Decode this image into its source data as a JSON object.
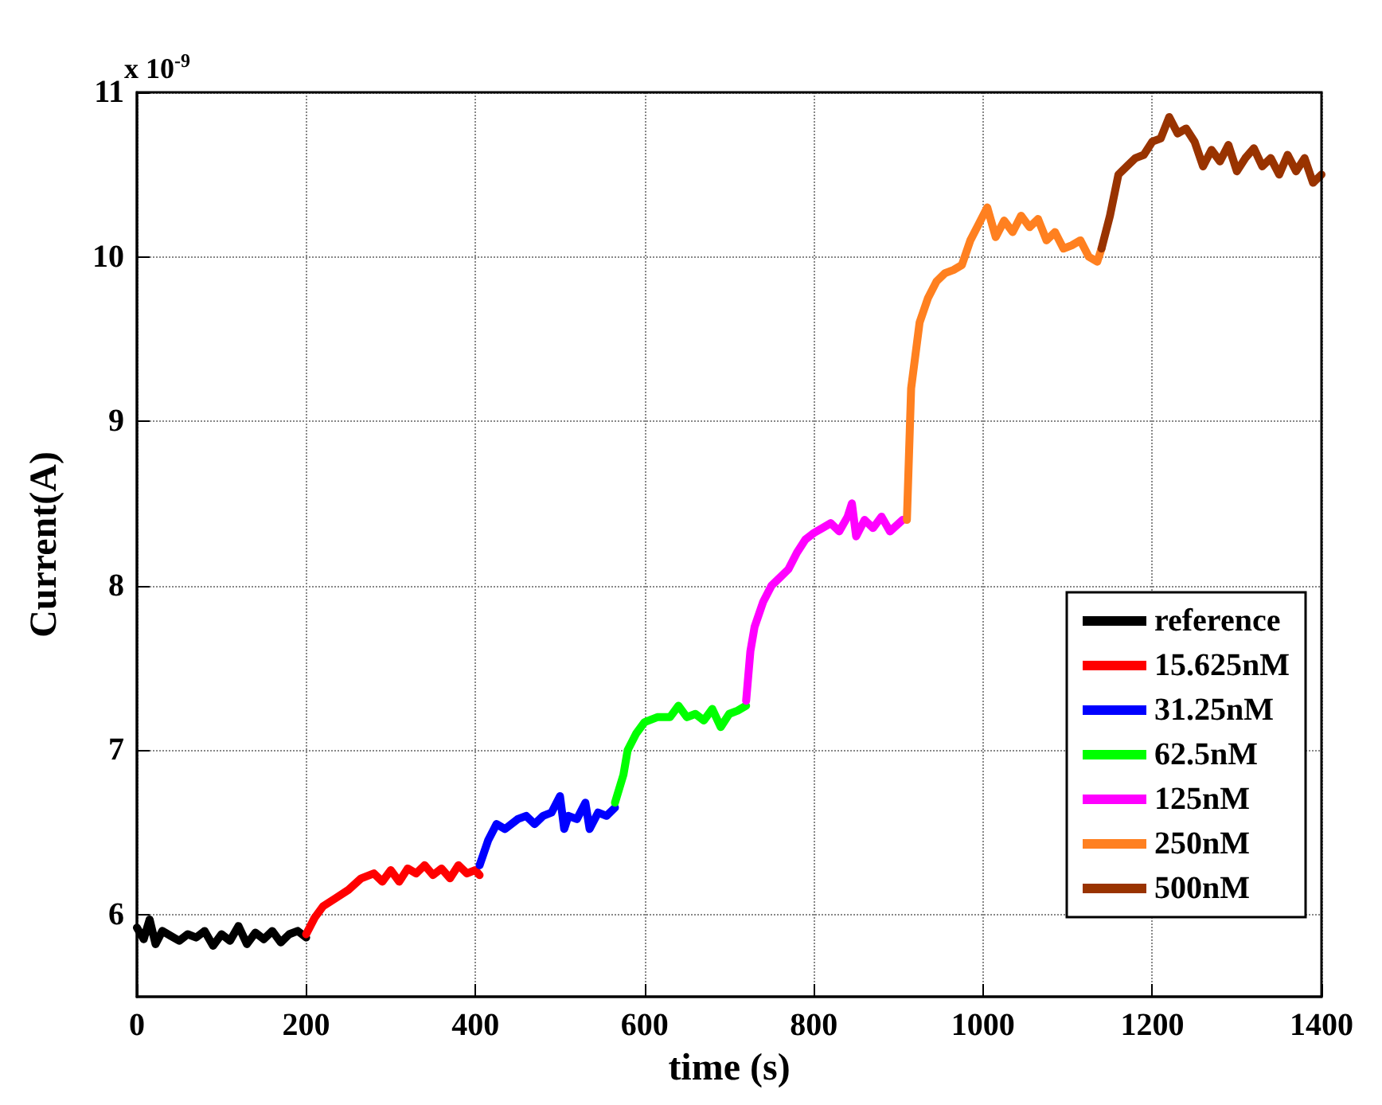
{
  "chart_data": {
    "type": "line",
    "xlabel": "time (s)",
    "ylabel": "Current(A)",
    "annotations": [
      "x 10$^{-9}$"
    ],
    "xlim": [
      0,
      1400
    ],
    "ylim": [
      5.5,
      11
    ],
    "xticks": [
      0,
      200,
      400,
      600,
      800,
      1000,
      1200,
      1400
    ],
    "yticks": [
      6,
      7,
      8,
      9,
      10,
      11
    ],
    "grid": true,
    "legend": "bottom right",
    "marker": "none",
    "line_style": "solid",
    "series": [
      {
        "name": "reference",
        "color": "#000000",
        "x": [
          0,
          8,
          15,
          22,
          30,
          40,
          50,
          60,
          70,
          80,
          90,
          100,
          110,
          120,
          130,
          140,
          150,
          160,
          170,
          180,
          190,
          200
        ],
        "values": [
          5.92,
          5.85,
          5.97,
          5.82,
          5.9,
          5.87,
          5.84,
          5.88,
          5.86,
          5.9,
          5.81,
          5.88,
          5.84,
          5.93,
          5.82,
          5.89,
          5.85,
          5.9,
          5.83,
          5.88,
          5.9,
          5.86
        ]
      },
      {
        "name": "15.625nM",
        "color": "#ff0000",
        "x": [
          200,
          210,
          220,
          235,
          250,
          265,
          280,
          290,
          300,
          310,
          320,
          330,
          340,
          350,
          360,
          370,
          380,
          390,
          400,
          405
        ],
        "values": [
          5.88,
          5.98,
          6.05,
          6.1,
          6.15,
          6.22,
          6.25,
          6.2,
          6.27,
          6.2,
          6.28,
          6.25,
          6.3,
          6.24,
          6.28,
          6.22,
          6.3,
          6.25,
          6.27,
          6.24
        ]
      },
      {
        "name": "31.25nM",
        "color": "#0000ff",
        "x": [
          405,
          415,
          425,
          435,
          450,
          460,
          470,
          480,
          490,
          500,
          505,
          510,
          520,
          530,
          535,
          545,
          555,
          565
        ],
        "values": [
          6.3,
          6.45,
          6.55,
          6.52,
          6.58,
          6.6,
          6.55,
          6.6,
          6.62,
          6.72,
          6.52,
          6.6,
          6.58,
          6.68,
          6.52,
          6.62,
          6.6,
          6.65
        ]
      },
      {
        "name": "62.5nM",
        "color": "#00ff00",
        "x": [
          565,
          575,
          580,
          590,
          600,
          615,
          630,
          640,
          650,
          660,
          670,
          680,
          690,
          700,
          710,
          720
        ],
        "values": [
          6.68,
          6.85,
          7.0,
          7.1,
          7.17,
          7.2,
          7.2,
          7.27,
          7.2,
          7.22,
          7.18,
          7.25,
          7.14,
          7.22,
          7.24,
          7.27
        ]
      },
      {
        "name": "125nM",
        "color": "#ff00ff",
        "x": [
          720,
          725,
          730,
          740,
          750,
          760,
          770,
          780,
          790,
          800,
          810,
          820,
          830,
          840,
          845,
          850,
          860,
          870,
          880,
          890,
          905
        ],
        "values": [
          7.3,
          7.6,
          7.75,
          7.9,
          8.0,
          8.05,
          8.1,
          8.2,
          8.28,
          8.32,
          8.35,
          8.38,
          8.33,
          8.42,
          8.5,
          8.3,
          8.4,
          8.35,
          8.42,
          8.33,
          8.4
        ]
      },
      {
        "name": "250nM",
        "color": "#ff8020",
        "x": [
          910,
          915,
          925,
          935,
          945,
          955,
          965,
          975,
          985,
          995,
          1005,
          1015,
          1025,
          1035,
          1045,
          1055,
          1065,
          1075,
          1085,
          1095,
          1105,
          1115,
          1125,
          1135,
          1140
        ],
        "values": [
          8.4,
          9.2,
          9.6,
          9.75,
          9.85,
          9.9,
          9.92,
          9.95,
          10.1,
          10.2,
          10.3,
          10.12,
          10.22,
          10.15,
          10.25,
          10.18,
          10.23,
          10.1,
          10.15,
          10.05,
          10.07,
          10.1,
          10.0,
          9.97,
          10.05
        ]
      },
      {
        "name": "500nM",
        "color": "#993300",
        "x": [
          1140,
          1150,
          1160,
          1170,
          1180,
          1190,
          1200,
          1210,
          1220,
          1230,
          1240,
          1250,
          1260,
          1270,
          1280,
          1290,
          1300,
          1310,
          1320,
          1330,
          1340,
          1350,
          1360,
          1370,
          1380,
          1390,
          1400
        ],
        "values": [
          10.05,
          10.25,
          10.5,
          10.55,
          10.6,
          10.62,
          10.7,
          10.72,
          10.85,
          10.75,
          10.78,
          10.7,
          10.55,
          10.65,
          10.58,
          10.68,
          10.52,
          10.6,
          10.66,
          10.55,
          10.6,
          10.5,
          10.62,
          10.52,
          10.6,
          10.45,
          10.5
        ]
      }
    ]
  }
}
